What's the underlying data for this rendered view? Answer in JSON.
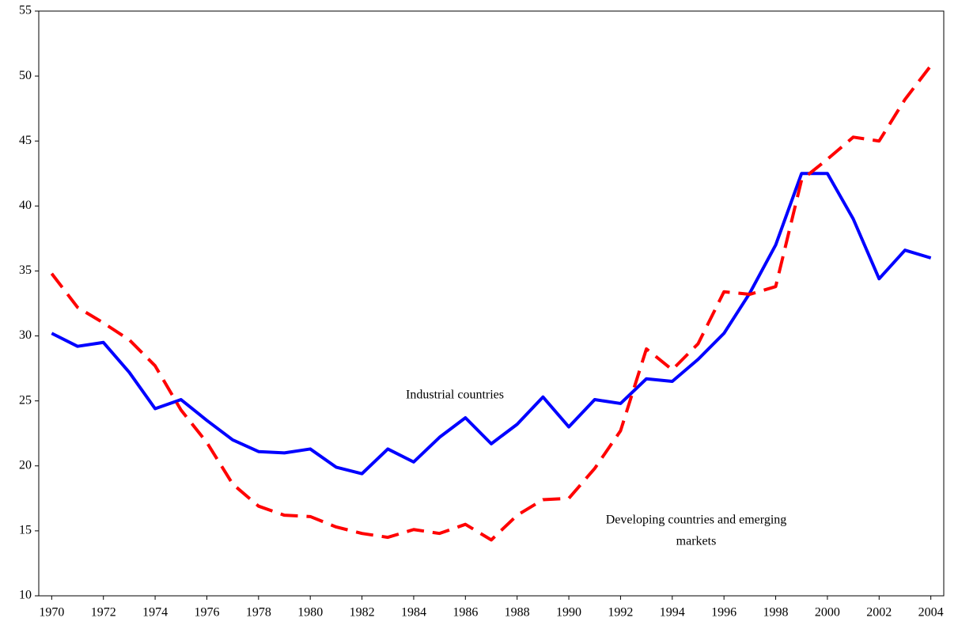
{
  "chart_data": {
    "type": "line",
    "x": [
      1970,
      1971,
      1972,
      1973,
      1974,
      1975,
      1976,
      1977,
      1978,
      1979,
      1980,
      1981,
      1982,
      1983,
      1984,
      1985,
      1986,
      1987,
      1988,
      1989,
      1990,
      1991,
      1992,
      1993,
      1994,
      1995,
      1996,
      1997,
      1998,
      1999,
      2000,
      2001,
      2002,
      2003,
      2004
    ],
    "series": [
      {
        "name": "Industrial countries",
        "color": "#0000ff",
        "dash": false,
        "values": [
          30.2,
          29.2,
          29.5,
          27.2,
          24.4,
          25.1,
          23.5,
          22.0,
          21.1,
          21.0,
          21.3,
          19.9,
          19.4,
          21.3,
          20.3,
          22.2,
          23.7,
          21.7,
          23.2,
          25.3,
          23.0,
          25.1,
          24.8,
          26.7,
          26.5,
          28.2,
          30.2,
          33.3,
          37.0,
          42.5,
          42.5,
          39.0,
          34.4,
          36.6,
          36.0
        ]
      },
      {
        "name": "Developing countries and emerging markets",
        "color": "#ff0000",
        "dash": true,
        "values": [
          34.8,
          32.2,
          31.0,
          29.7,
          27.7,
          24.3,
          21.8,
          18.6,
          16.9,
          16.2,
          16.1,
          15.3,
          14.8,
          14.5,
          15.1,
          14.8,
          15.5,
          14.3,
          16.2,
          17.4,
          17.5,
          19.8,
          22.7,
          29.0,
          27.4,
          29.4,
          33.4,
          33.2,
          33.8,
          42.0,
          43.6,
          45.3,
          45.0,
          48.2,
          50.8
        ]
      }
    ],
    "annotations": [
      {
        "series": 0,
        "lines": [
          "Industrial countries"
        ]
      },
      {
        "series": 1,
        "lines": [
          "Developing countries and emerging",
          "markets"
        ]
      }
    ],
    "xlim": [
      1969.5,
      2004.5
    ],
    "xticks": [
      1970,
      1972,
      1974,
      1976,
      1978,
      1980,
      1982,
      1984,
      1986,
      1988,
      1990,
      1992,
      1994,
      1996,
      1998,
      2000,
      2002,
      2004
    ],
    "ylim": [
      10,
      55
    ],
    "yticks": [
      10,
      15,
      20,
      25,
      30,
      35,
      40,
      45,
      50,
      55
    ],
    "grid": false
  }
}
